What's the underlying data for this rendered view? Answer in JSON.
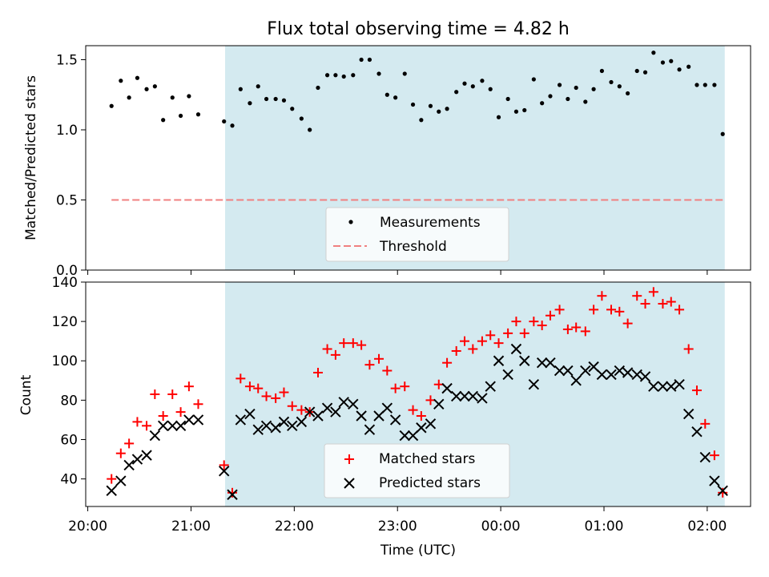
{
  "chart_data": [
    {
      "type": "scatter",
      "title": "Flux total observing time = 4.82 h",
      "ylabel": "Matched/Predicted stars",
      "xlabel": "",
      "ylim": [
        0,
        1.6
      ],
      "yticks": [
        "0.0",
        "0.5",
        "1.0",
        "1.5"
      ],
      "ytick_values": [
        0,
        0.5,
        1.0,
        1.5
      ],
      "shaded_span_hours": [
        21.33,
        26.17
      ],
      "shade_color": "#d4eaf0",
      "series": [
        {
          "name": "Measurements",
          "marker": "dot",
          "color": "#000000",
          "x": [
            20.23,
            20.32,
            20.4,
            20.48,
            20.57,
            20.65,
            20.73,
            20.82,
            20.9,
            20.98,
            21.07,
            21.32,
            21.4,
            21.48,
            21.57,
            21.65,
            21.73,
            21.82,
            21.9,
            21.98,
            22.07,
            22.15,
            22.23,
            22.32,
            22.4,
            22.48,
            22.57,
            22.65,
            22.73,
            22.82,
            22.9,
            22.98,
            23.07,
            23.15,
            23.23,
            23.32,
            23.4,
            23.48,
            23.57,
            23.65,
            23.73,
            23.82,
            23.9,
            23.98,
            24.07,
            24.15,
            24.23,
            24.32,
            24.4,
            24.48,
            24.57,
            24.65,
            24.73,
            24.82,
            24.9,
            24.98,
            25.07,
            25.15,
            25.23,
            25.32,
            25.4,
            25.48,
            25.57,
            25.65,
            25.73,
            25.82,
            25.9,
            25.98,
            26.07,
            26.15
          ],
          "y": [
            1.17,
            1.35,
            1.23,
            1.37,
            1.29,
            1.31,
            1.07,
            1.23,
            1.1,
            1.24,
            1.11,
            1.06,
            1.03,
            1.29,
            1.19,
            1.31,
            1.22,
            1.22,
            1.21,
            1.15,
            1.08,
            1.0,
            1.3,
            1.39,
            1.39,
            1.38,
            1.39,
            1.5,
            1.5,
            1.4,
            1.25,
            1.23,
            1.4,
            1.18,
            1.07,
            1.17,
            1.13,
            1.15,
            1.27,
            1.33,
            1.31,
            1.35,
            1.29,
            1.09,
            1.22,
            1.13,
            1.14,
            1.36,
            1.19,
            1.24,
            1.32,
            1.22,
            1.3,
            1.2,
            1.29,
            1.42,
            1.34,
            1.31,
            1.26,
            1.42,
            1.41,
            1.55,
            1.48,
            1.49,
            1.43,
            1.45,
            1.32,
            1.32,
            1.32,
            0.97
          ]
        },
        {
          "name": "Threshold",
          "style": "dashed-line",
          "color": "#f08080",
          "x": [
            20.23,
            26.15
          ],
          "y": [
            0.5,
            0.5
          ]
        }
      ],
      "legend": "lower-center"
    },
    {
      "type": "scatter",
      "xlabel": "Time (UTC)",
      "ylabel": "Count",
      "xlim": [
        19.98,
        26.42
      ],
      "ylim": [
        26,
        140
      ],
      "xticks": [
        "20:00",
        "21:00",
        "22:00",
        "23:00",
        "00:00",
        "01:00",
        "02:00"
      ],
      "xtick_values": [
        20,
        21,
        22,
        23,
        24,
        25,
        26
      ],
      "yticks": [
        "40",
        "60",
        "80",
        "100",
        "120",
        "140"
      ],
      "ytick_values": [
        40,
        60,
        80,
        100,
        120,
        140
      ],
      "shaded_span_hours": [
        21.33,
        26.17
      ],
      "shade_color": "#d4eaf0",
      "series": [
        {
          "name": "Matched stars",
          "marker": "plus",
          "color": "#ff0000",
          "x": [
            20.23,
            20.32,
            20.4,
            20.48,
            20.57,
            20.65,
            20.73,
            20.82,
            20.9,
            20.98,
            21.07,
            21.32,
            21.4,
            21.48,
            21.57,
            21.65,
            21.73,
            21.82,
            21.9,
            21.98,
            22.07,
            22.15,
            22.23,
            22.32,
            22.4,
            22.48,
            22.57,
            22.65,
            22.73,
            22.82,
            22.9,
            22.98,
            23.07,
            23.15,
            23.23,
            23.32,
            23.4,
            23.48,
            23.57,
            23.65,
            23.73,
            23.82,
            23.9,
            23.98,
            24.07,
            24.15,
            24.23,
            24.32,
            24.4,
            24.48,
            24.57,
            24.65,
            24.73,
            24.82,
            24.9,
            24.98,
            25.07,
            25.15,
            25.23,
            25.32,
            25.4,
            25.48,
            25.57,
            25.65,
            25.73,
            25.82,
            25.9,
            25.98,
            26.07,
            26.15
          ],
          "y": [
            40,
            53,
            58,
            69,
            67,
            83,
            72,
            83,
            74,
            87,
            78,
            47,
            33,
            91,
            87,
            86,
            82,
            81,
            84,
            77,
            75,
            74,
            94,
            106,
            103,
            109,
            109,
            108,
            98,
            101,
            95,
            86,
            87,
            75,
            72,
            80,
            88,
            99,
            105,
            110,
            106,
            110,
            113,
            109,
            114,
            120,
            114,
            120,
            118,
            123,
            126,
            116,
            117,
            115,
            126,
            133,
            126,
            125,
            119,
            133,
            129,
            135,
            129,
            130,
            126,
            106,
            85,
            68,
            52,
            33
          ]
        },
        {
          "name": "Predicted stars",
          "marker": "x",
          "color": "#000000",
          "x": [
            20.23,
            20.32,
            20.4,
            20.48,
            20.57,
            20.65,
            20.73,
            20.82,
            20.9,
            20.98,
            21.07,
            21.32,
            21.4,
            21.48,
            21.57,
            21.65,
            21.73,
            21.82,
            21.9,
            21.98,
            22.07,
            22.15,
            22.23,
            22.32,
            22.4,
            22.48,
            22.57,
            22.65,
            22.73,
            22.82,
            22.9,
            22.98,
            23.07,
            23.15,
            23.23,
            23.32,
            23.4,
            23.48,
            23.57,
            23.65,
            23.73,
            23.82,
            23.9,
            23.98,
            24.07,
            24.15,
            24.23,
            24.32,
            24.4,
            24.48,
            24.57,
            24.65,
            24.73,
            24.82,
            24.9,
            24.98,
            25.07,
            25.15,
            25.23,
            25.32,
            25.4,
            25.48,
            25.57,
            25.65,
            25.73,
            25.82,
            25.9,
            25.98,
            26.07,
            26.15
          ],
          "y": [
            34,
            39,
            47,
            50,
            52,
            62,
            67,
            67,
            67,
            70,
            70,
            44,
            32,
            70,
            73,
            65,
            67,
            66,
            69,
            67,
            69,
            74,
            72,
            76,
            74,
            79,
            78,
            72,
            65,
            72,
            76,
            70,
            62,
            62,
            66,
            68,
            78,
            86,
            82,
            82,
            82,
            81,
            87,
            100,
            93,
            106,
            100,
            88,
            99,
            99,
            95,
            95,
            90,
            95,
            97,
            93,
            93,
            95,
            94,
            93,
            92,
            87,
            87,
            87,
            88,
            73,
            64,
            51,
            39,
            34
          ]
        }
      ],
      "legend": "lower-center"
    }
  ]
}
